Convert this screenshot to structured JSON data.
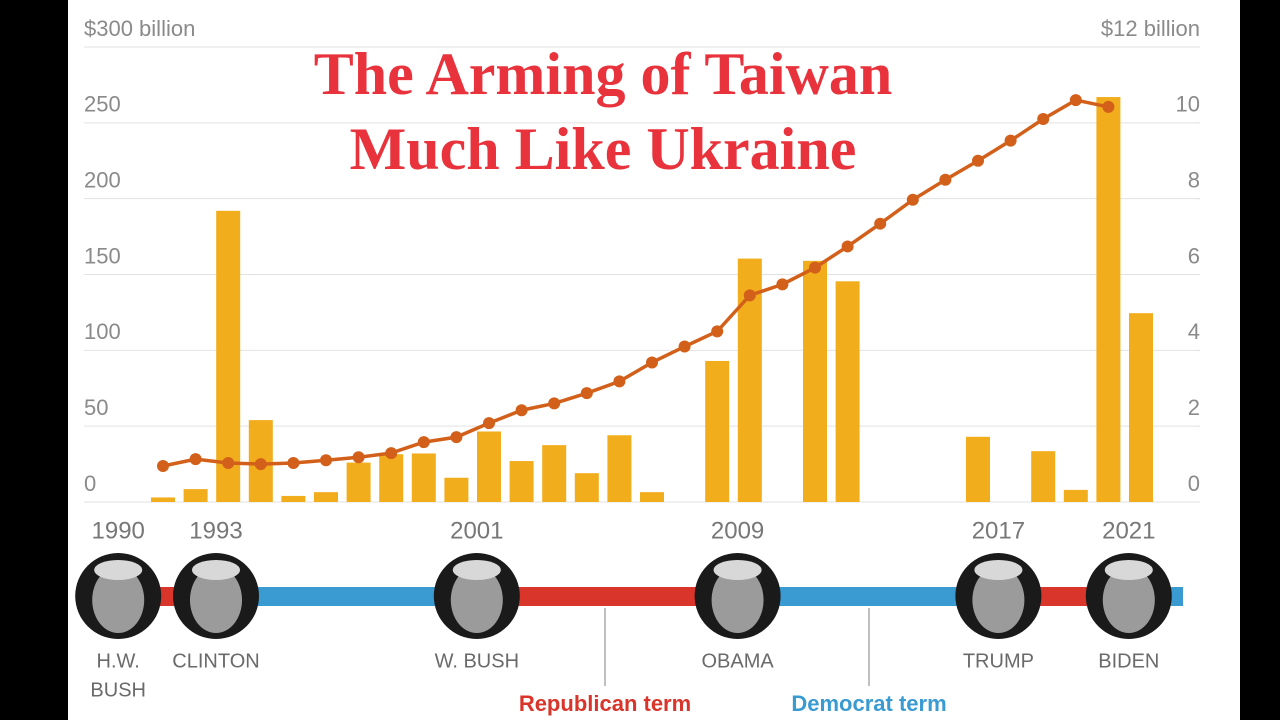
{
  "chart_data": {
    "type": "bar-line",
    "title": [
      "The Arming of Taiwan",
      "Much Like Ukraine"
    ],
    "x": [
      1991,
      1992,
      1993,
      1994,
      1995,
      1996,
      1997,
      1998,
      1999,
      2000,
      2001,
      2002,
      2003,
      2004,
      2005,
      2006,
      2007,
      2008,
      2009,
      2010,
      2011,
      2012,
      2013,
      2014,
      2015,
      2016,
      2017,
      2018,
      2019,
      2020,
      2021
    ],
    "xlim": [
      1990,
      2022
    ],
    "series": [
      {
        "type": "bar",
        "color": "#f2ad1c",
        "axis": "y",
        "values": [
          3,
          8.5,
          192,
          54,
          4,
          6.5,
          26,
          31.5,
          32,
          16,
          46.5,
          27,
          37.5,
          19,
          44,
          6.5,
          0,
          93,
          160.5,
          0,
          159,
          145.5,
          0,
          0,
          0,
          43,
          0,
          33.5,
          8,
          267,
          124.5
        ]
      },
      {
        "type": "line",
        "color": "#d2601a",
        "axis": "y2",
        "values": [
          0.95,
          1.13,
          1.03,
          1.0,
          1.03,
          1.1,
          1.18,
          1.29,
          1.58,
          1.71,
          2.08,
          2.42,
          2.6,
          2.87,
          3.18,
          3.68,
          4.1,
          4.5,
          5.45,
          5.74,
          6.18,
          6.74,
          7.34,
          7.97,
          8.5,
          9.0,
          9.53,
          10.1,
          10.6,
          10.42,
          null
        ]
      }
    ],
    "ylim": [
      0,
      300
    ],
    "yticks": [
      0,
      50,
      100,
      150,
      200,
      250,
      {
        "value": 300,
        "label": "$300 billion"
      }
    ],
    "y2lim": [
      0,
      12
    ],
    "y2ticks": [
      0,
      2,
      4,
      6,
      8,
      10,
      {
        "value": 12,
        "label": "$12 billion"
      }
    ],
    "grid": true,
    "presidents": [
      {
        "year": "1990",
        "name": [
          "H.W.",
          "BUSH"
        ],
        "term": 0
      },
      {
        "year": "1993",
        "name": [
          "CLINTON"
        ],
        "term": 1
      },
      {
        "year": "2001",
        "name": [
          "W. BUSH"
        ],
        "term": 0
      },
      {
        "year": "2009",
        "name": [
          "OBAMA"
        ],
        "term": 1
      },
      {
        "year": "2017",
        "name": [
          "TRUMP"
        ],
        "term": 0
      },
      {
        "year": "2021",
        "name": [
          "BIDEN"
        ],
        "term": 1
      }
    ],
    "term_legend": [
      {
        "label": "Republican term",
        "color": "#d9352a"
      },
      {
        "label": "Democrat term",
        "color": "#3a9ad2"
      }
    ]
  }
}
